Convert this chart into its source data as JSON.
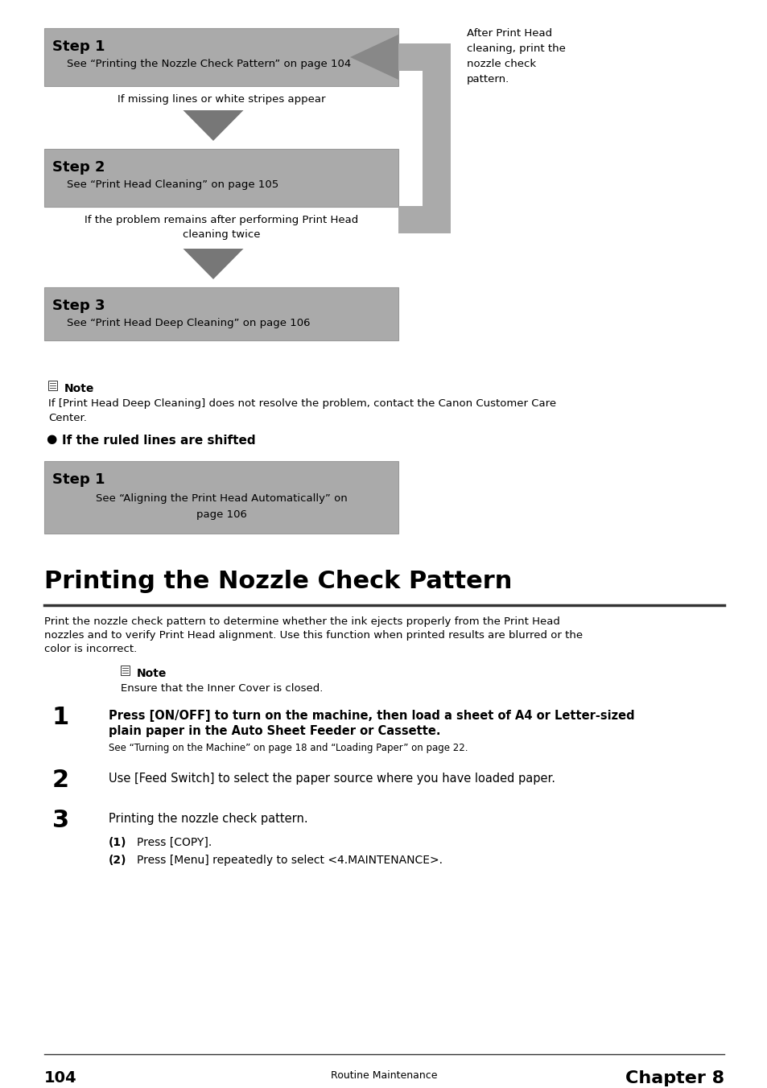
{
  "bg_color": "#ffffff",
  "box_color": "#aaaaaa",
  "box_edge": "#999999",
  "arrow_fill": "#777777",
  "bracket_color": "#aaaaaa",
  "text_black": "#000000",
  "step1_title": "Step 1",
  "step1_sub": "See “Printing the Nozzle Check Pattern” on page 104",
  "step1_after": "If missing lines or white stripes appear",
  "step2_title": "Step 2",
  "step2_sub": "See “Print Head Cleaning” on page 105",
  "step2_after": "If the problem remains after performing Print Head\ncleaning twice",
  "step3_title": "Step 3",
  "step3_sub": "See “Print Head Deep Cleaning” on page 106",
  "after_text": "After Print Head\ncleaning, print the\nnozzle check\npattern.",
  "note1_label": "Note",
  "note1_text": "If [Print Head Deep Cleaning] does not resolve the problem, contact the Canon Customer Care\nCenter.",
  "bullet_text": "If the ruled lines are shifted",
  "step1b_title": "Step 1",
  "step1b_line1": "See “Aligning the Print Head Automatically” on",
  "step1b_line2": "page 106",
  "section_title": "Printing the Nozzle Check Pattern",
  "section_body1": "Print the nozzle check pattern to determine whether the ink ejects properly from the Print Head",
  "section_body2": "nozzles and to verify Print Head alignment. Use this function when printed results are blurred or the",
  "section_body3": "color is incorrect.",
  "note2_label": "Note",
  "note2_text": "Ensure that the Inner Cover is closed.",
  "item1_num": "1",
  "item1_bold1": "Press [ON/OFF] to turn on the machine, then load a sheet of A4 or Letter-sized",
  "item1_bold2": "plain paper in the Auto Sheet Feeder or Cassette.",
  "item1_sub": "See “Turning on the Machine” on page 18 and “Loading Paper” on page 22.",
  "item2_num": "2",
  "item2_text": "Use [Feed Switch] to select the paper source where you have loaded paper.",
  "item3_num": "3",
  "item3_text": "Printing the nozzle check pattern.",
  "sub1_label": "(1)",
  "sub1_text": "Press [COPY].",
  "sub2_label": "(2)",
  "sub2_text": "Press [Menu] repeatedly to select <4.MAINTENANCE>.",
  "footer_page": "104",
  "footer_center": "Routine Maintenance",
  "footer_right": "Chapter 8"
}
